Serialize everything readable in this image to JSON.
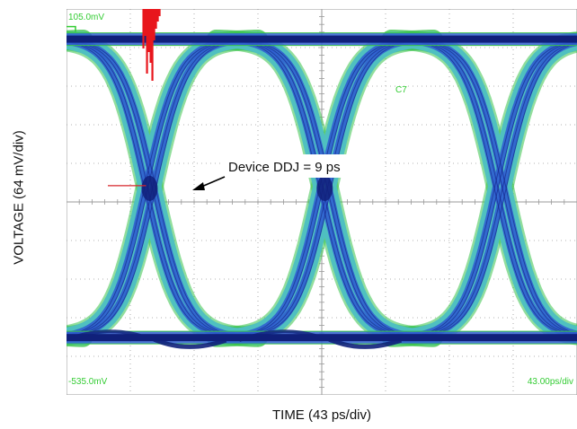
{
  "chart_data": {
    "type": "eye-diagram",
    "title": "",
    "xlabel": "TIME (43 ps/div)",
    "ylabel": "VOLTAGE (64 mV/div)",
    "screen": {
      "top_left_readout": "105.0mV",
      "bottom_left_readout": "-535.0mV",
      "bottom_right_readout": "43.00ps/div",
      "channel_label": "C7"
    },
    "ylim_mV": [
      -535,
      105
    ],
    "grid": {
      "x_divisions": 8,
      "y_divisions": 10,
      "shown": true
    },
    "levels_mV": {
      "high": 55,
      "low": -440
    },
    "crossings_ps": [
      56,
      174
    ],
    "annotation": {
      "text": "Device DDJ = 9 ps",
      "jitter_ps": 9
    },
    "colors": {
      "grid": "#9a9a9a",
      "readout_text": "#33cc33",
      "eye_dense": "#10207a",
      "eye_mid": "#2f5fd0",
      "eye_light": "#4fc0c0",
      "eye_edge": "#39c24a",
      "histogram": "#e8161c",
      "marker_line": "#d7262b"
    }
  }
}
